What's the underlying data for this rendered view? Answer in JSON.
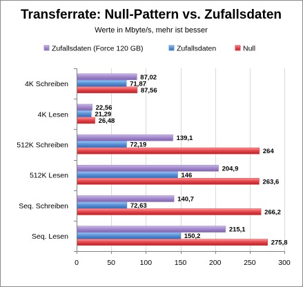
{
  "chart_data": {
    "type": "bar",
    "orientation": "horizontal",
    "title": "Transferrate: Null-Pattern vs. Zufallsdaten",
    "subtitle": "Werte in Mbyte/s,  mehr ist besser",
    "categories": [
      "4K Schreiben",
      "4K Lesen",
      "512K Schreiben",
      "512K Lesen",
      "Seq. Schreiben",
      "Seq. Lesen"
    ],
    "series": [
      {
        "name": "Zufallsdaten (Force 120 GB)",
        "color": "#a48bcd",
        "values": [
          87.02,
          22.56,
          139.1,
          204.9,
          140.7,
          215.1
        ],
        "labels": [
          "87,02",
          "22,56",
          "139,1",
          "204,9",
          "140,7",
          "215,1"
        ]
      },
      {
        "name": "Zufallsdaten",
        "color": "#5b93d8",
        "values": [
          71.87,
          21.29,
          72.19,
          146,
          72.63,
          150.2
        ],
        "labels": [
          "71,87",
          "21,29",
          "72,19",
          "146",
          "72,63",
          "150,2"
        ]
      },
      {
        "name": "Null",
        "color": "#e8474d",
        "values": [
          87.56,
          26.48,
          264,
          263.6,
          266.2,
          275.8
        ],
        "labels": [
          "87,56",
          "26,48",
          "264",
          "263,6",
          "266,2",
          "275,8"
        ]
      }
    ],
    "xlim": [
      0,
      300
    ],
    "xticks": [
      "0",
      "50",
      "100",
      "150",
      "200",
      "250",
      "300"
    ],
    "grid": true,
    "legend_position": "top"
  }
}
